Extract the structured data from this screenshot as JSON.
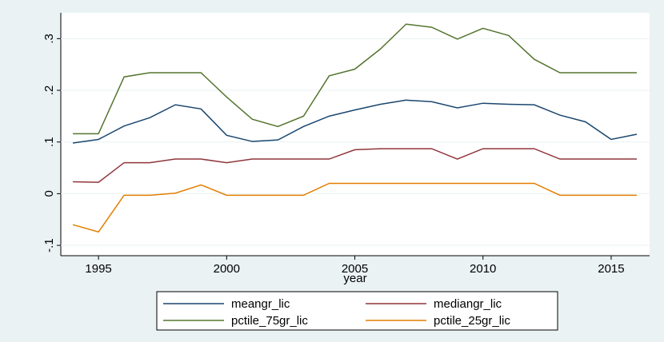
{
  "chart_data": {
    "type": "line",
    "x_label": "year",
    "x": [
      1994,
      1995,
      1996,
      1997,
      1998,
      1999,
      2000,
      2001,
      2002,
      2003,
      2004,
      2005,
      2006,
      2007,
      2008,
      2009,
      2010,
      2011,
      2012,
      2013,
      2014,
      2015,
      2016
    ],
    "series": [
      {
        "name": "meangr_lic",
        "color": "#1a476f",
        "values": [
          0.098,
          0.105,
          0.131,
          0.147,
          0.172,
          0.164,
          0.113,
          0.101,
          0.104,
          0.13,
          0.15,
          0.162,
          0.173,
          0.181,
          0.178,
          0.166,
          0.175,
          0.173,
          0.172,
          0.152,
          0.139,
          0.105,
          0.115
        ]
      },
      {
        "name": "mediangr_lic",
        "color": "#90353b",
        "values": [
          0.023,
          0.022,
          0.06,
          0.06,
          0.067,
          0.067,
          0.06,
          0.067,
          0.067,
          0.067,
          0.067,
          0.085,
          0.087,
          0.087,
          0.087,
          0.067,
          0.087,
          0.087,
          0.087,
          0.067,
          0.067,
          0.067,
          0.067
        ]
      },
      {
        "name": "pctile_75gr_lic",
        "color": "#55752f",
        "values": [
          0.116,
          0.116,
          0.226,
          0.234,
          0.234,
          0.234,
          0.187,
          0.144,
          0.13,
          0.15,
          0.228,
          0.241,
          0.28,
          0.328,
          0.322,
          0.299,
          0.32,
          0.306,
          0.26,
          0.234,
          0.234,
          0.234,
          0.234
        ]
      },
      {
        "name": "pctile_25gr_lic",
        "color": "#e37e00",
        "values": [
          -0.06,
          -0.074,
          -0.003,
          -0.003,
          0.001,
          0.017,
          -0.003,
          -0.003,
          -0.003,
          -0.003,
          0.02,
          0.02,
          0.02,
          0.02,
          0.02,
          0.02,
          0.02,
          0.02,
          0.02,
          -0.003,
          -0.003,
          -0.003,
          -0.003
        ]
      }
    ],
    "xlim": [
      1993.53,
      2016.5
    ],
    "xticks": [
      1995,
      2000,
      2005,
      2010,
      2015
    ],
    "ylim": [
      -0.12,
      0.35
    ],
    "yticks": [
      {
        "value": -0.1,
        "label": "-.1"
      },
      0,
      {
        "value": 0.1,
        "label": ".1"
      },
      {
        "value": 0.2,
        "label": ".2"
      },
      {
        "value": 0.3,
        "label": ".3"
      }
    ],
    "grid": true
  }
}
